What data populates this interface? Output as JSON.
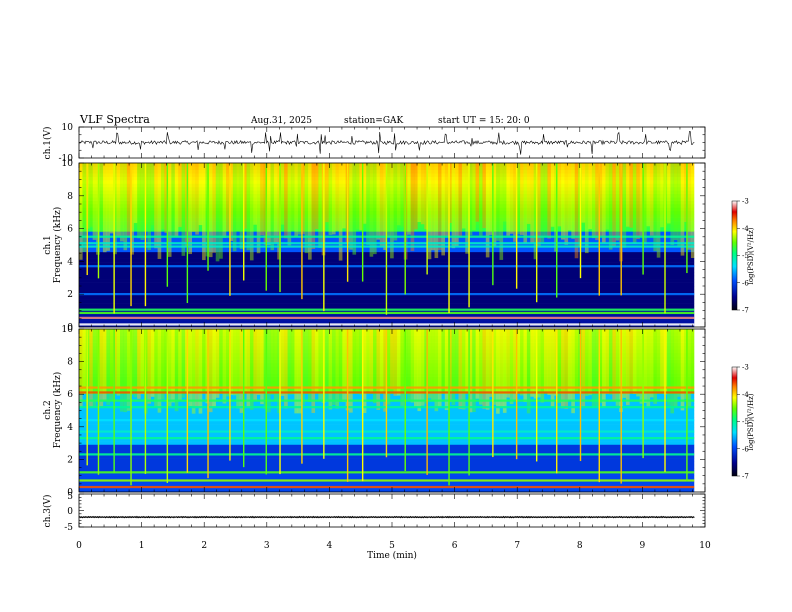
{
  "header": {
    "title": "VLF  Spectra",
    "date": "Aug.31, 2025",
    "station": "station=GAK",
    "start": "start  UT  =    15: 20: 0"
  },
  "chart_data": [
    {
      "id": "ch1-waveform",
      "type": "line",
      "ylabel": "ch.1(V)",
      "ylim": [
        -10,
        10
      ],
      "yticks": [
        "10",
        "-10"
      ],
      "xlim": [
        0,
        10
      ],
      "baseline": 0,
      "noise_level": 1.2,
      "spike_times": [
        0.22,
        0.61,
        0.98,
        1.42,
        1.9,
        2.33,
        2.76,
        2.98,
        3.05,
        3.22,
        3.48,
        3.86,
        3.93,
        4.36,
        4.8,
        5.05,
        5.44,
        5.86,
        6.27,
        6.71,
        7.05,
        7.42,
        7.8,
        8.2,
        8.62,
        9.05,
        9.44,
        9.76
      ],
      "color": "#000000"
    },
    {
      "id": "ch1-spectrogram",
      "type": "heatmap",
      "ylabel": "ch.1\nFrequency  (kHz)",
      "ylabel_lines": [
        "ch.1",
        "Frequency  (kHz)"
      ],
      "ylim": [
        0,
        10
      ],
      "yticks": [
        "0",
        "2",
        "4",
        "6",
        "8",
        "10"
      ],
      "xlim": [
        0,
        10
      ],
      "data_end_min": 9.83,
      "colorbar": {
        "label": "log(PSD)(V²/Hz)",
        "ticks": [
          "-3",
          "-4",
          "-5",
          "-6",
          "-7"
        ],
        "range": [
          -7,
          -3
        ]
      },
      "bands": [
        {
          "f": 0.15,
          "level": -3.0
        },
        {
          "f": 0.55,
          "level": -3.2
        },
        {
          "f": 0.85,
          "level": -4.6
        },
        {
          "f": 1.05,
          "level": -4.8
        },
        {
          "f": 2.0,
          "level": -5.8
        },
        {
          "f": 3.7,
          "level": -5.8
        },
        {
          "f": 4.9,
          "level": -5.2
        },
        {
          "f": 5.1,
          "level": -5.2
        },
        {
          "f": 5.5,
          "level": -5.0
        }
      ],
      "event_times": [
        0.12,
        0.3,
        0.55,
        0.82,
        1.05,
        1.4,
        1.72,
        2.05,
        2.4,
        2.62,
        2.98,
        3.2,
        3.55,
        3.9,
        4.28,
        4.52,
        4.9,
        5.2,
        5.55,
        5.9,
        6.22,
        6.6,
        6.98,
        7.3,
        7.62,
        8.0,
        8.3,
        8.65,
        9.0,
        9.35,
        9.7
      ]
    },
    {
      "id": "ch2-spectrogram",
      "type": "heatmap",
      "ylabel": "ch.2\nFrequency  (kHz)",
      "ylabel_lines": [
        "ch.2",
        "Frequency  (kHz)"
      ],
      "ylim": [
        0,
        10
      ],
      "yticks": [
        "0",
        "2",
        "4",
        "6",
        "8",
        "10"
      ],
      "xlim": [
        0,
        10
      ],
      "data_end_min": 9.83,
      "colorbar": {
        "label": "log(PSD)(V²/Hz)",
        "ticks": [
          "-3",
          "-4",
          "-5",
          "-6",
          "-7"
        ],
        "range": [
          -7,
          -3
        ]
      },
      "bands": [
        {
          "f": 0.3,
          "level": -3.6
        },
        {
          "f": 0.7,
          "level": -4.4
        },
        {
          "f": 1.2,
          "level": -4.6
        },
        {
          "f": 2.3,
          "level": -5.0
        },
        {
          "f": 3.3,
          "level": -5.0
        },
        {
          "f": 3.7,
          "level": -5.2
        },
        {
          "f": 4.4,
          "level": -5.4
        },
        {
          "f": 5.2,
          "level": -5.0
        },
        {
          "f": 5.6,
          "level": -4.8
        },
        {
          "f": 6.1,
          "level": -3.6
        },
        {
          "f": 6.4,
          "level": -3.8
        }
      ],
      "event_times": [
        0.12,
        0.3,
        0.55,
        0.82,
        1.05,
        1.4,
        1.72,
        2.05,
        2.4,
        2.62,
        2.98,
        3.2,
        3.55,
        3.9,
        4.28,
        4.52,
        4.9,
        5.2,
        5.55,
        5.9,
        6.22,
        6.6,
        6.98,
        7.3,
        7.62,
        8.0,
        8.3,
        8.65,
        9.0,
        9.35,
        9.7
      ]
    },
    {
      "id": "ch3-waveform",
      "type": "line",
      "ylabel": "ch.3(V)",
      "ylim": [
        -5,
        5
      ],
      "yticks": [
        "5",
        "0",
        "-5"
      ],
      "xlim": [
        0,
        10
      ],
      "baseline": -2.0,
      "noise_level": 0.15,
      "color": "#000000"
    }
  ],
  "xaxis": {
    "label": "Time  (min)",
    "ticks": [
      "0",
      "1",
      "2",
      "3",
      "4",
      "5",
      "6",
      "7",
      "8",
      "9",
      "10"
    ],
    "range": [
      0,
      10
    ]
  }
}
